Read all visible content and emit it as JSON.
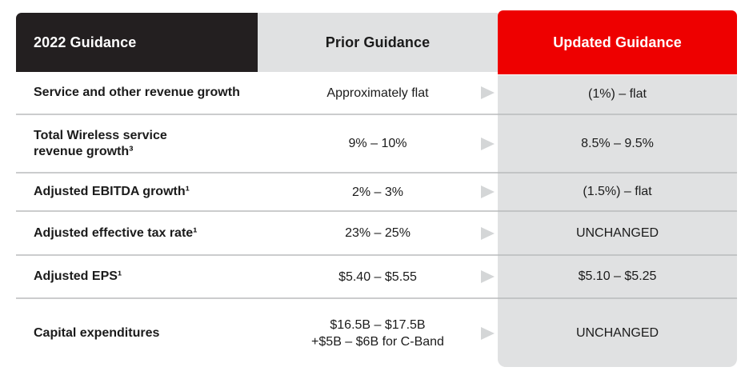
{
  "colors": {
    "verizon_red": "#ee0000",
    "verizon_black": "#231f20",
    "cell_gray": "#e0e1e2",
    "arrow_gray": "#d4d6d7",
    "separator_gray": "#cbcccd"
  },
  "icons": {
    "row_arrow": "arrow-right"
  },
  "chart_data": {
    "type": "table",
    "title": "2022 Guidance",
    "columns": [
      "2022 Guidance",
      "Prior Guidance",
      "Updated Guidance"
    ],
    "rows": [
      [
        "Service and other revenue growth",
        "Approximately flat",
        "(1%) – flat"
      ],
      [
        "Total Wireless service\nrevenue growth³",
        "9% – 10%",
        "8.5% – 9.5%"
      ],
      [
        "Adjusted EBITDA growth¹",
        "2% – 3%",
        "(1.5%) – flat"
      ],
      [
        "Adjusted effective tax rate¹",
        "23% – 25%",
        "UNCHANGED"
      ],
      [
        "Adjusted EPS¹",
        "$5.40 – $5.55",
        "$5.10 – $5.25"
      ],
      [
        "Capital expenditures",
        "$16.5B – $17.5B\n+$5B – $6B for C-Band",
        "UNCHANGED"
      ]
    ]
  }
}
